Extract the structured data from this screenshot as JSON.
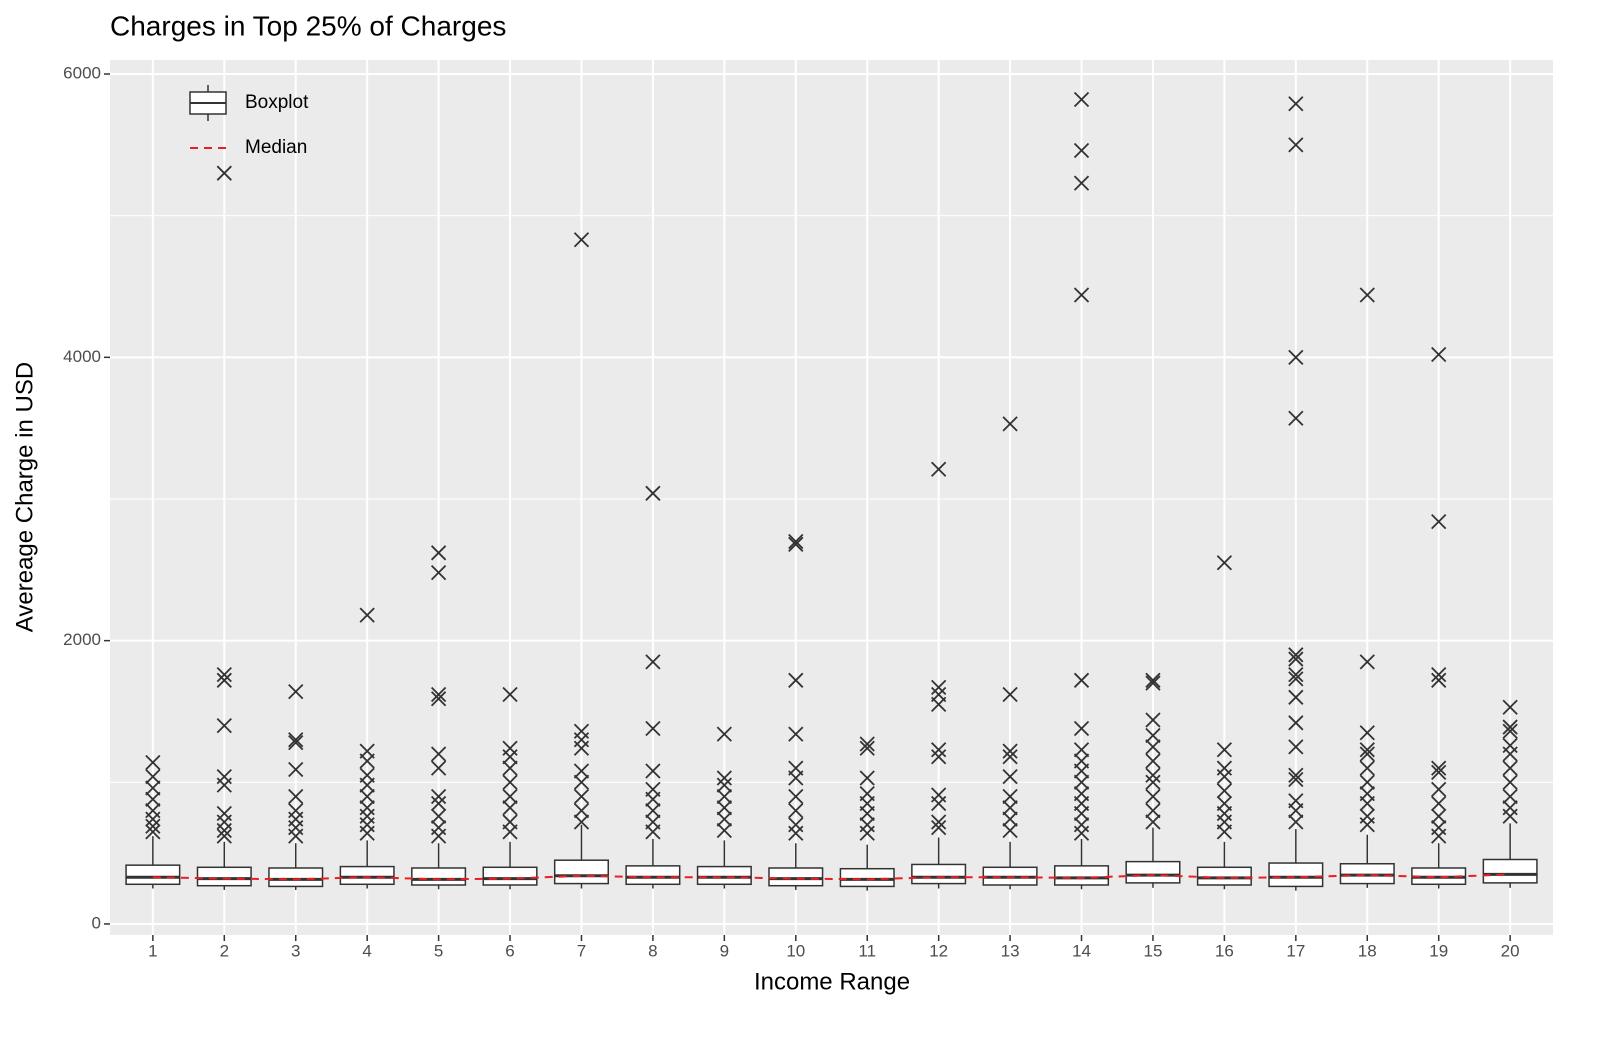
{
  "chart_data": {
    "type": "boxplot",
    "title": "Charges in Top 25% of Charges",
    "x_label": "Income Range",
    "y_label": "Avereage Charge in USD",
    "categories": [
      "1",
      "2",
      "3",
      "4",
      "5",
      "6",
      "7",
      "8",
      "9",
      "10",
      "11",
      "12",
      "13",
      "14",
      "15",
      "16",
      "17",
      "18",
      "19",
      "20"
    ],
    "boxes": [
      {
        "q1": 280,
        "median": 330,
        "q3": 415,
        "low": 250,
        "high": 620,
        "outliers": [
          1140,
          1040,
          960,
          880,
          800,
          740,
          690,
          650
        ]
      },
      {
        "q1": 270,
        "median": 320,
        "q3": 400,
        "low": 240,
        "high": 580,
        "outliers": [
          5300,
          1760,
          1720,
          1400,
          1040,
          980,
          780,
          720,
          660,
          620
        ]
      },
      {
        "q1": 265,
        "median": 315,
        "q3": 395,
        "low": 240,
        "high": 570,
        "outliers": [
          1640,
          1300,
          1280,
          1090,
          900,
          800,
          740,
          680,
          620
        ]
      },
      {
        "q1": 280,
        "median": 330,
        "q3": 405,
        "low": 250,
        "high": 590,
        "outliers": [
          2180,
          1220,
          1150,
          1050,
          980,
          900,
          820,
          760,
          700,
          640
        ]
      },
      {
        "q1": 275,
        "median": 315,
        "q3": 395,
        "low": 245,
        "high": 570,
        "outliers": [
          2620,
          2480,
          1620,
          1590,
          1200,
          1100,
          900,
          850,
          760,
          680,
          620
        ]
      },
      {
        "q1": 275,
        "median": 320,
        "q3": 400,
        "low": 245,
        "high": 580,
        "outliers": [
          1620,
          1240,
          1180,
          1100,
          1000,
          900,
          820,
          720,
          650
        ]
      },
      {
        "q1": 285,
        "median": 340,
        "q3": 450,
        "low": 250,
        "high": 700,
        "outliers": [
          4830,
          1360,
          1300,
          1240,
          1080,
          1000,
          900,
          800,
          720
        ]
      },
      {
        "q1": 280,
        "median": 330,
        "q3": 410,
        "low": 250,
        "high": 600,
        "outliers": [
          3040,
          1850,
          1380,
          1080,
          950,
          880,
          800,
          720,
          650
        ]
      },
      {
        "q1": 280,
        "median": 330,
        "q3": 405,
        "low": 250,
        "high": 590,
        "outliers": [
          1340,
          1030,
          980,
          900,
          820,
          740,
          660
        ]
      },
      {
        "q1": 270,
        "median": 320,
        "q3": 395,
        "low": 240,
        "high": 570,
        "outliers": [
          2700,
          2680,
          1720,
          1340,
          1100,
          1030,
          900,
          800,
          700,
          640
        ]
      },
      {
        "q1": 265,
        "median": 315,
        "q3": 390,
        "low": 235,
        "high": 560,
        "outliers": [
          1270,
          1240,
          1030,
          920,
          850,
          780,
          700,
          640
        ]
      },
      {
        "q1": 285,
        "median": 330,
        "q3": 420,
        "low": 250,
        "high": 610,
        "outliers": [
          3210,
          1670,
          1620,
          1550,
          1230,
          1180,
          910,
          850,
          720,
          680
        ]
      },
      {
        "q1": 275,
        "median": 330,
        "q3": 400,
        "low": 245,
        "high": 580,
        "outliers": [
          3530,
          1620,
          1220,
          1180,
          1040,
          900,
          820,
          740,
          660
        ]
      },
      {
        "q1": 275,
        "median": 325,
        "q3": 410,
        "low": 245,
        "high": 600,
        "outliers": [
          5820,
          5460,
          5230,
          4440,
          1720,
          1380,
          1230,
          1150,
          1080,
          1000,
          920,
          850,
          780,
          700,
          640
        ]
      },
      {
        "q1": 290,
        "median": 345,
        "q3": 440,
        "low": 255,
        "high": 680,
        "outliers": [
          1720,
          1700,
          1440,
          1330,
          1250,
          1150,
          1050,
          1000,
          900,
          800,
          720
        ]
      },
      {
        "q1": 275,
        "median": 325,
        "q3": 400,
        "low": 245,
        "high": 580,
        "outliers": [
          2550,
          1230,
          1100,
          1040,
          940,
          850,
          780,
          720,
          650
        ]
      },
      {
        "q1": 265,
        "median": 330,
        "q3": 430,
        "low": 235,
        "high": 670,
        "outliers": [
          5790,
          5500,
          4000,
          3570,
          1900,
          1870,
          1760,
          1730,
          1600,
          1420,
          1250,
          1050,
          1020,
          870,
          800,
          720
        ]
      },
      {
        "q1": 285,
        "median": 345,
        "q3": 425,
        "low": 255,
        "high": 630,
        "outliers": [
          4440,
          1850,
          1350,
          1230,
          1200,
          1100,
          1000,
          920,
          850,
          760,
          700
        ]
      },
      {
        "q1": 280,
        "median": 330,
        "q3": 395,
        "low": 250,
        "high": 570,
        "outliers": [
          4020,
          2840,
          1760,
          1720,
          1100,
          1070,
          950,
          850,
          760,
          680,
          620
        ]
      },
      {
        "q1": 290,
        "median": 350,
        "q3": 455,
        "low": 255,
        "high": 710,
        "outliers": [
          1530,
          1390,
          1360,
          1260,
          1200,
          1100,
          1000,
          900,
          820,
          760
        ]
      }
    ],
    "series": [
      {
        "name": "Boxplot",
        "color": "#333333"
      },
      {
        "name": "Median",
        "color": "#e8201f"
      }
    ],
    "ylim": [
      -78,
      6099
    ],
    "yticks": [
      0,
      2000,
      4000,
      6000
    ],
    "grid": true,
    "legend": "top-left"
  }
}
